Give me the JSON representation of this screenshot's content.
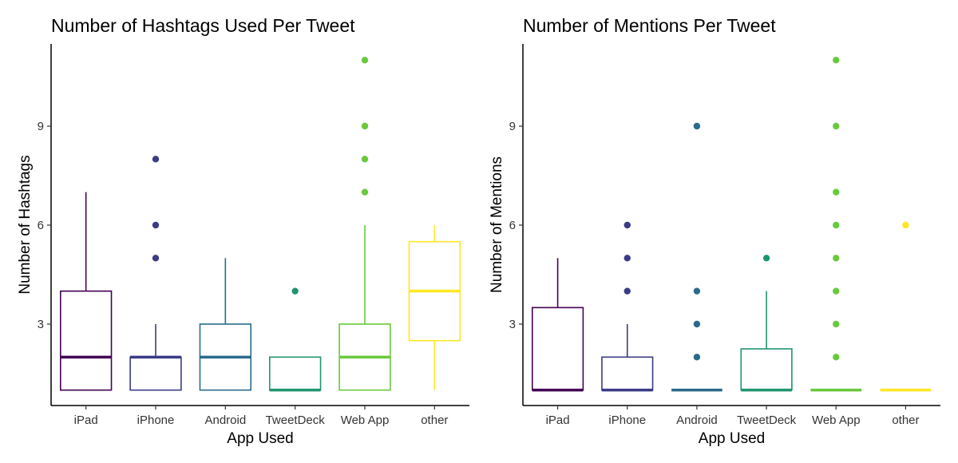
{
  "chart_data": [
    {
      "type": "boxplot",
      "title": "Number of Hashtags Used Per Tweet",
      "xlabel": "App Used",
      "ylabel": "Number of Hashtags",
      "categories": [
        "iPad",
        "iPhone",
        "Android",
        "TweetDeck",
        "Web App",
        "other"
      ],
      "yticks": [
        3,
        6,
        9
      ],
      "ylim": [
        0.5,
        11.5
      ],
      "grid": false,
      "legend": "none",
      "colors": [
        "#440154",
        "#3b3b87",
        "#2a6a8c",
        "#21946f",
        "#69c93d",
        "#fde724"
      ],
      "boxes": [
        {
          "category": "iPad",
          "min": 1,
          "q1": 1,
          "median": 2,
          "q3": 4,
          "max": 7,
          "outliers": []
        },
        {
          "category": "iPhone",
          "min": 1,
          "q1": 1,
          "median": 2,
          "q3": 2,
          "max": 3,
          "outliers": [
            5,
            6,
            8
          ]
        },
        {
          "category": "Android",
          "min": 1,
          "q1": 1,
          "median": 2,
          "q3": 3,
          "max": 5,
          "outliers": []
        },
        {
          "category": "TweetDeck",
          "min": 1,
          "q1": 1,
          "median": 1,
          "q3": 2,
          "max": 2,
          "outliers": [
            4
          ]
        },
        {
          "category": "Web App",
          "min": 1,
          "q1": 1,
          "median": 2,
          "q3": 3,
          "max": 6,
          "outliers": [
            7,
            8,
            9,
            11
          ]
        },
        {
          "category": "other",
          "min": 1,
          "q1": 2.5,
          "median": 4,
          "q3": 5.5,
          "max": 6,
          "outliers": []
        }
      ]
    },
    {
      "type": "boxplot",
      "title": "Number of Mentions Per Tweet",
      "xlabel": "App Used",
      "ylabel": "Number of Mentions",
      "categories": [
        "iPad",
        "iPhone",
        "Android",
        "TweetDeck",
        "Web App",
        "other"
      ],
      "yticks": [
        3,
        6,
        9
      ],
      "ylim": [
        0.5,
        11.5
      ],
      "grid": false,
      "legend": "none",
      "colors": [
        "#440154",
        "#3b3b87",
        "#2a6a8c",
        "#21946f",
        "#69c93d",
        "#fde724"
      ],
      "boxes": [
        {
          "category": "iPad",
          "min": 1,
          "q1": 1,
          "median": 1,
          "q3": 3.5,
          "max": 5,
          "outliers": []
        },
        {
          "category": "iPhone",
          "min": 1,
          "q1": 1,
          "median": 1,
          "q3": 2,
          "max": 3,
          "outliers": [
            4,
            5,
            6
          ]
        },
        {
          "category": "Android",
          "min": 1,
          "q1": 1,
          "median": 1,
          "q3": 1,
          "max": 1,
          "outliers": [
            2,
            3,
            4,
            9
          ]
        },
        {
          "category": "TweetDeck",
          "min": 1,
          "q1": 1,
          "median": 1,
          "q3": 2.25,
          "max": 4,
          "outliers": [
            5
          ]
        },
        {
          "category": "Web App",
          "min": 1,
          "q1": 1,
          "median": 1,
          "q3": 1,
          "max": 1,
          "outliers": [
            2,
            3,
            4,
            5,
            6,
            7,
            9,
            11
          ]
        },
        {
          "category": "other",
          "min": 1,
          "q1": 1,
          "median": 1,
          "q3": 1,
          "max": 1,
          "outliers": [
            6
          ]
        }
      ]
    }
  ]
}
